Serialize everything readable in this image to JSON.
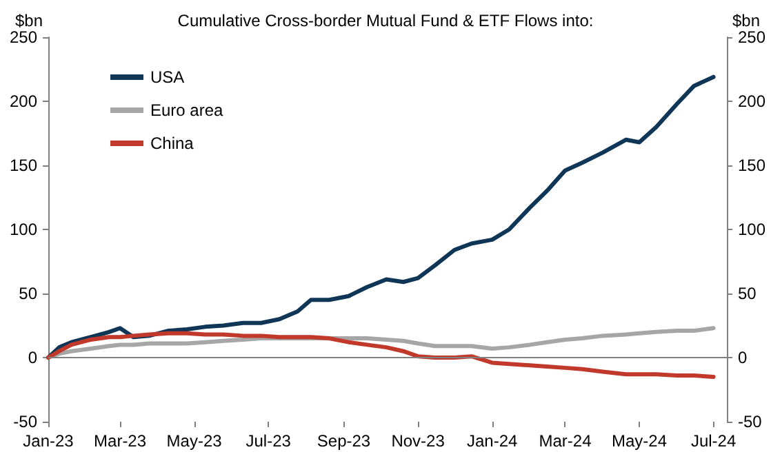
{
  "chart_data": {
    "type": "line",
    "title": "Cumulative Cross-border Mutual Fund & ETF Flows into:",
    "ylabel": "$bn",
    "y2label": "$bn",
    "xlim": [
      "2023-01-01",
      "2024-07-12"
    ],
    "xticks": [
      {
        "value": "2023-01-01",
        "label": "Jan-23"
      },
      {
        "value": "2023-03-01",
        "label": "Mar-23"
      },
      {
        "value": "2023-05-01",
        "label": "May-23"
      },
      {
        "value": "2023-07-01",
        "label": "Jul-23"
      },
      {
        "value": "2023-09-01",
        "label": "Sep-23"
      },
      {
        "value": "2023-11-01",
        "label": "Nov-23"
      },
      {
        "value": "2024-01-01",
        "label": "Jan-24"
      },
      {
        "value": "2024-03-01",
        "label": "Mar-24"
      },
      {
        "value": "2024-05-01",
        "label": "May-24"
      },
      {
        "value": "2024-07-01",
        "label": "Jul-24"
      }
    ],
    "ylim": [
      -50,
      250
    ],
    "yticks": [
      -50,
      0,
      50,
      100,
      150,
      200,
      250
    ],
    "y2lim": [
      -50,
      250
    ],
    "y2ticks": [
      -50,
      0,
      50,
      100,
      150,
      200,
      250
    ],
    "x": [
      "2023-01-01",
      "2023-01-10",
      "2023-01-20",
      "2023-02-05",
      "2023-02-20",
      "2023-03-01",
      "2023-03-12",
      "2023-03-25",
      "2023-04-10",
      "2023-04-25",
      "2023-05-10",
      "2023-05-25",
      "2023-06-10",
      "2023-06-25",
      "2023-07-10",
      "2023-07-25",
      "2023-08-05",
      "2023-08-20",
      "2023-09-05",
      "2023-09-20",
      "2023-10-06",
      "2023-10-20",
      "2023-11-01",
      "2023-11-15",
      "2023-12-01",
      "2023-12-15",
      "2024-01-01",
      "2024-01-15",
      "2024-02-01",
      "2024-02-15",
      "2024-03-01",
      "2024-03-15",
      "2024-04-01",
      "2024-04-20",
      "2024-05-01",
      "2024-05-15",
      "2024-06-01",
      "2024-06-15",
      "2024-07-01"
    ],
    "series": [
      {
        "name": "USA",
        "color": "#0f3557",
        "values": [
          0,
          8,
          12,
          16,
          20,
          23,
          16,
          17,
          21,
          22,
          24,
          25,
          27,
          27,
          30,
          36,
          45,
          45,
          48,
          55,
          61,
          59,
          62,
          72,
          84,
          89,
          92,
          100,
          117,
          130,
          146,
          152,
          160,
          170,
          168,
          180,
          198,
          212,
          219
        ]
      },
      {
        "name": "Euro area",
        "color": "#a6a6a6",
        "values": [
          0,
          3,
          5,
          7,
          9,
          10,
          10,
          11,
          11,
          11,
          12,
          13,
          14,
          15,
          15,
          15,
          15,
          15,
          15,
          15,
          14,
          13,
          11,
          9,
          9,
          9,
          7,
          8,
          10,
          12,
          14,
          15,
          17,
          18,
          19,
          20,
          21,
          21,
          23
        ]
      },
      {
        "name": "China",
        "color": "#c0392b",
        "values": [
          0,
          5,
          10,
          14,
          16,
          16,
          17,
          18,
          19,
          19,
          18,
          18,
          17,
          17,
          16,
          16,
          16,
          15,
          12,
          10,
          8,
          5,
          1,
          0,
          0,
          1,
          -4,
          -5,
          -6,
          -7,
          -8,
          -9,
          -11,
          -13,
          -13,
          -13,
          -14,
          -14,
          -15
        ]
      }
    ],
    "ref_lines": [
      {
        "axis": "y",
        "value": 0,
        "color": "#808080"
      }
    ],
    "legend": "top left",
    "grid": false
  }
}
